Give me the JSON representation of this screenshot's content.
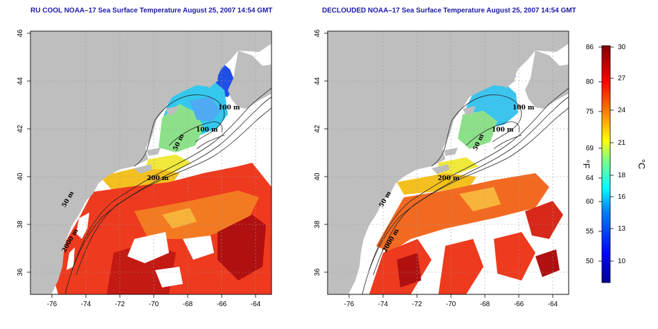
{
  "panels": [
    {
      "title": "RU COOL NOAA–17 Sea Surface Temperature August 25, 2007 14:54 GMT"
    },
    {
      "title": "DECLOUDED NOAA–17 Sea Surface Temperature August 25, 2007 14:54 GMT"
    }
  ],
  "axes": {
    "lon_ticks": [
      "-76",
      "-74",
      "-72",
      "-70",
      "-68",
      "-66",
      "-64"
    ],
    "lat_ticks": [
      "36",
      "38",
      "40",
      "42",
      "44",
      "46"
    ],
    "lon_range": [
      -77,
      -63
    ],
    "lat_range": [
      35,
      46
    ]
  },
  "contours": {
    "labels": [
      "100 m",
      "100 m",
      "50 m",
      "200 m",
      "50 m",
      "2000 m"
    ]
  },
  "colorbar": {
    "fahrenheit_label": "°F",
    "celsius_label": "°C",
    "fahrenheit_ticks": [
      "86",
      "80",
      "75",
      "69",
      "64",
      "60",
      "55",
      "50"
    ],
    "celsius_ticks": [
      "30",
      "27",
      "24",
      "21",
      "18",
      "16",
      "13",
      "10"
    ],
    "colors": [
      "#00008f",
      "#0000ff",
      "#0080ff",
      "#00ffff",
      "#80ff80",
      "#ffff00",
      "#ff8000",
      "#ff0000",
      "#800000"
    ]
  },
  "colors": {
    "land": "#bebebe",
    "title": "#1a1aa6"
  }
}
